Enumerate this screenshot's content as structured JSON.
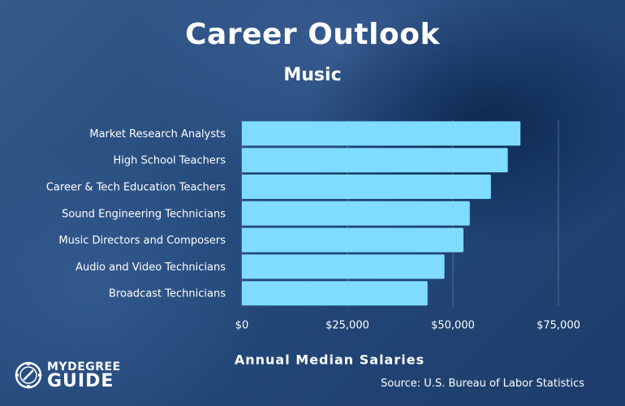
{
  "chart_data": {
    "type": "bar",
    "orientation": "horizontal",
    "title": "Career Outlook",
    "subtitle": "Music",
    "xlabel": "Annual Median Salaries",
    "ylabel": "",
    "categories": [
      "Market Research Analysts",
      "High School Teachers",
      "Career & Tech Education Teachers",
      "Sound Engineering Technicians",
      "Music Directors and Composers",
      "Audio and Video Technicians",
      "Broadcast Technicians"
    ],
    "values": [
      66000,
      63000,
      59000,
      54000,
      52500,
      48000,
      44000
    ],
    "xlim": [
      0,
      75000
    ],
    "xticks": [
      {
        "value": 0,
        "label": "$0"
      },
      {
        "value": 25000,
        "label": "$25,000"
      },
      {
        "value": 50000,
        "label": "$50,000"
      },
      {
        "value": 75000,
        "label": "$75,000"
      }
    ],
    "grid": true,
    "bar_color": "#7fdcff"
  },
  "source": "Source: U.S. Bureau of Labor Statistics",
  "logo": {
    "text_top": "MYDEGREE",
    "text_bottom": "GUIDE",
    "icon": "compass-icon"
  }
}
